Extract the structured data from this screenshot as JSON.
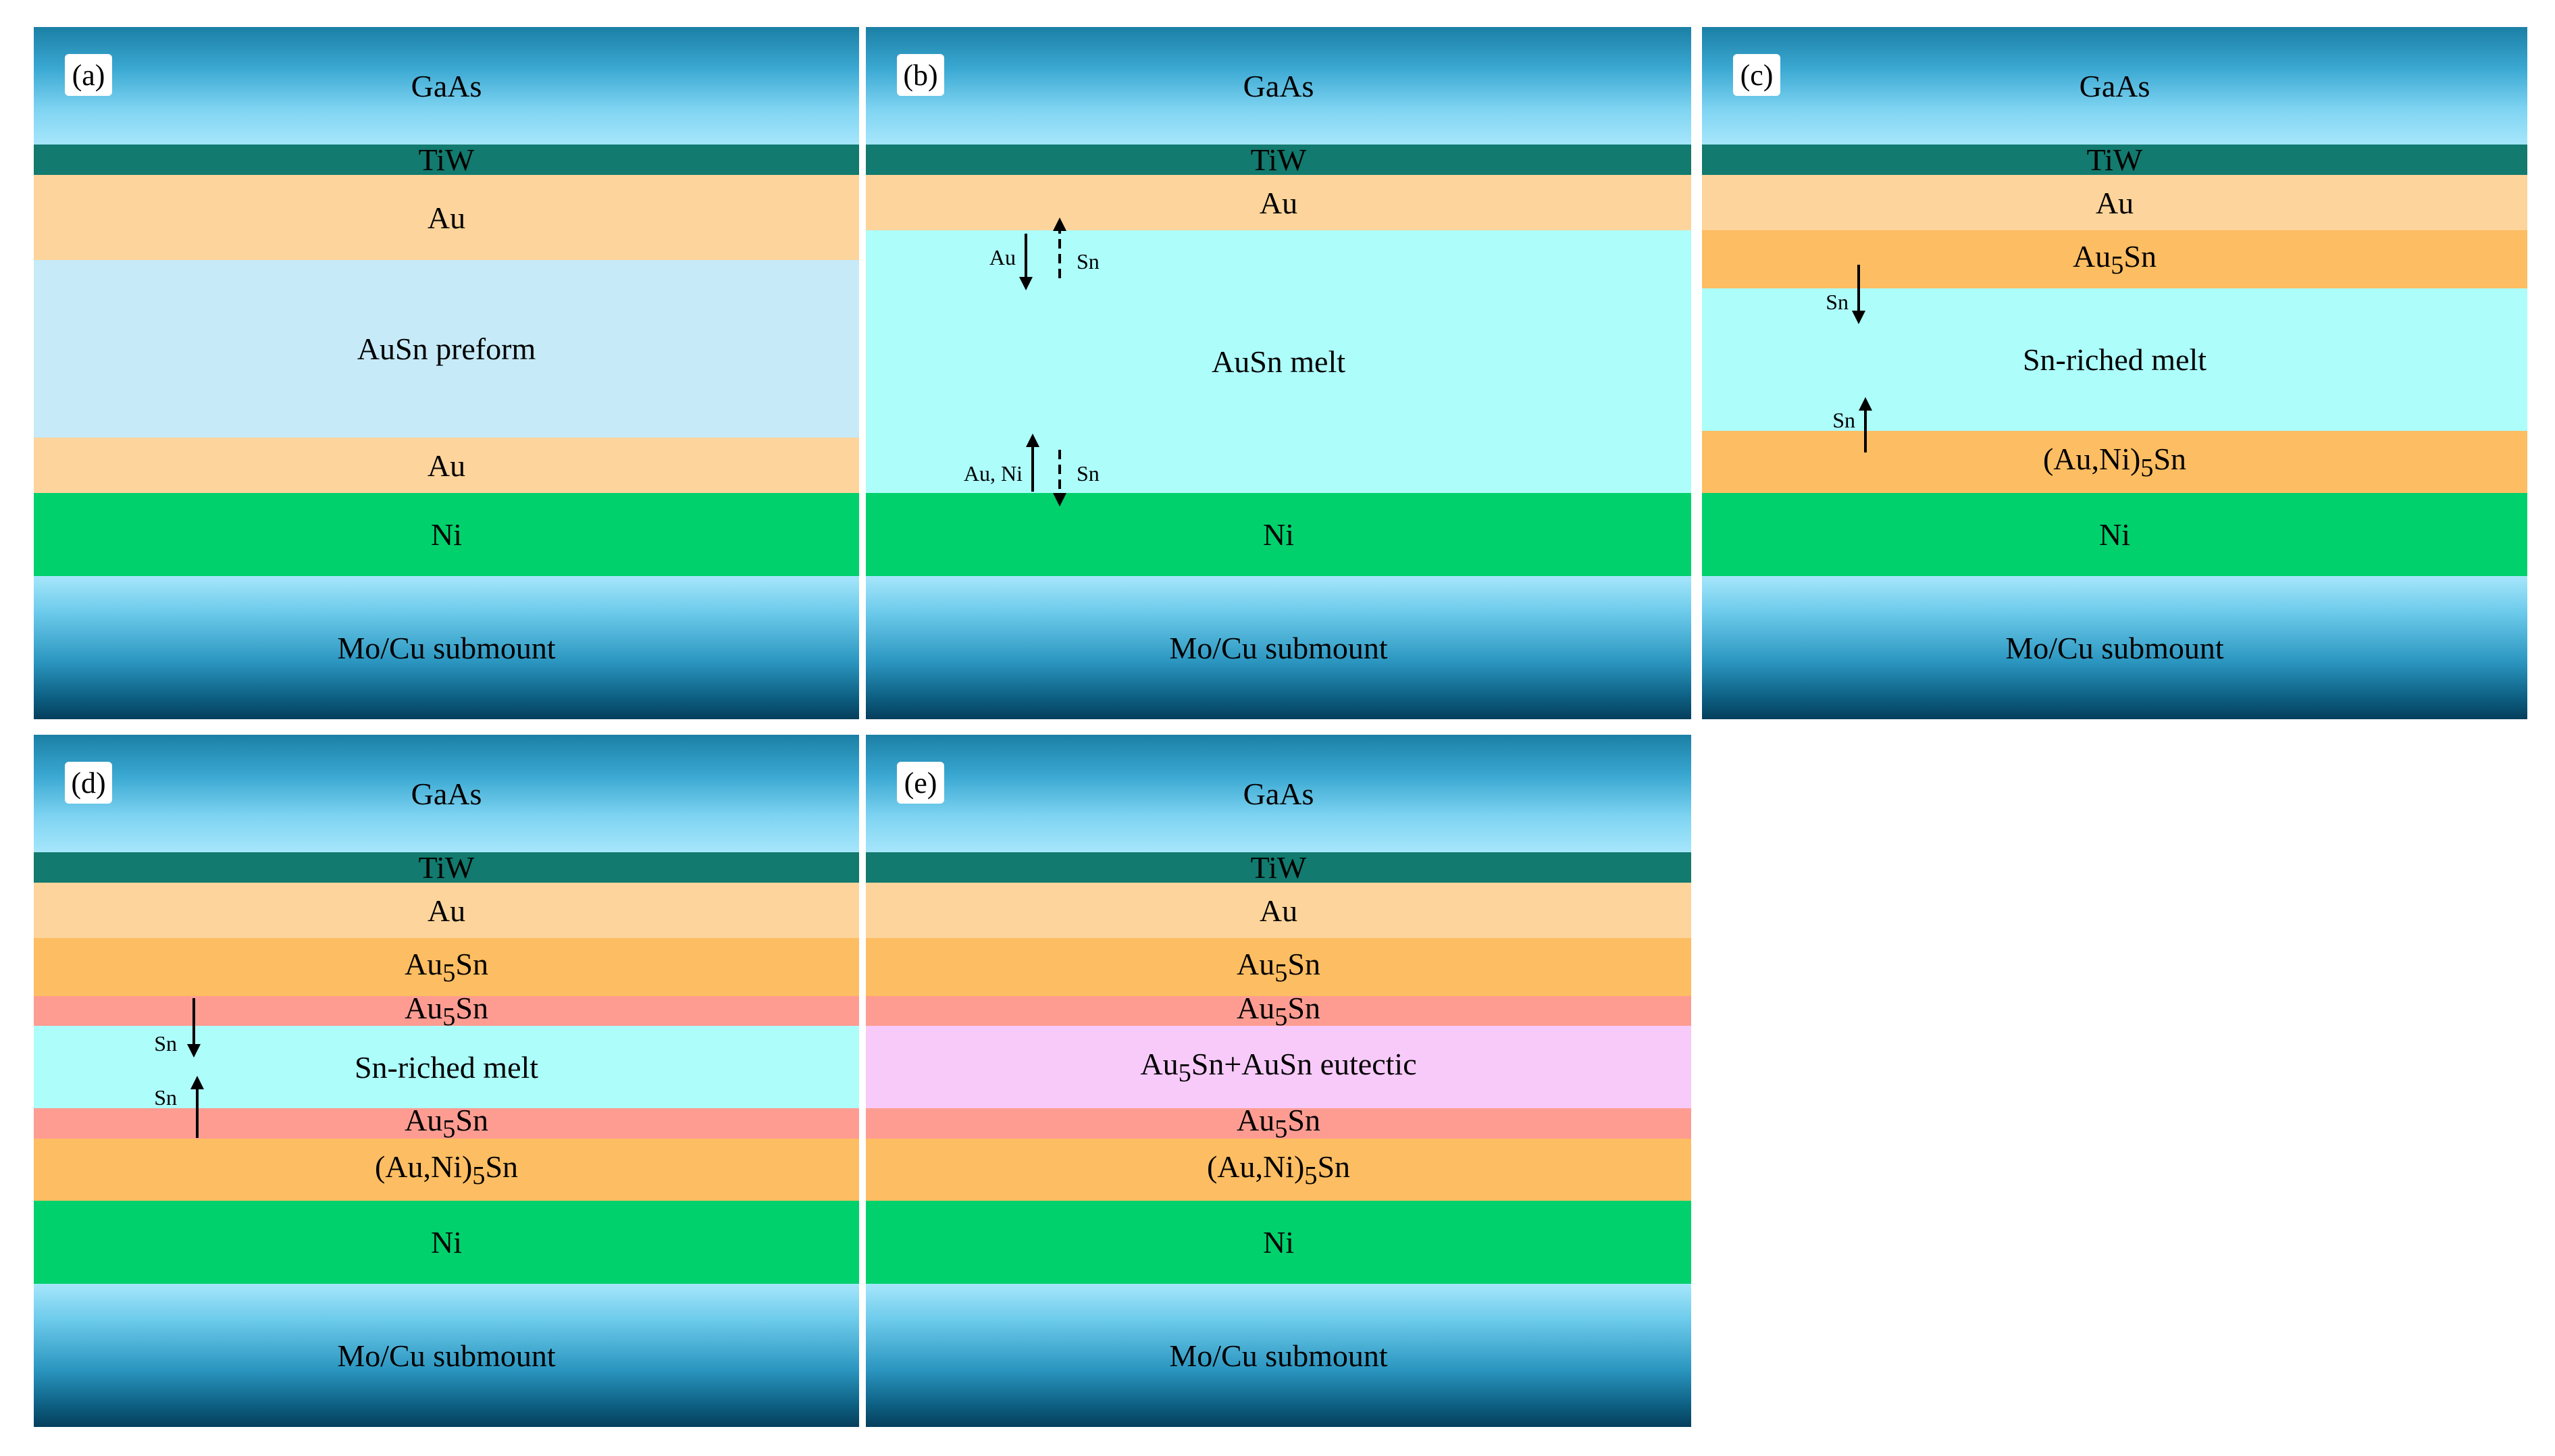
{
  "colors": {
    "gaas_top": "#1b7fa5",
    "submount_bottom": "#063f5c",
    "tiw": "#127a6e",
    "au": "#fdd49b",
    "preform": "#c6eaf7",
    "melt": "#adfdfb",
    "ni": "#00d16c",
    "au5sn_orange": "#fdbd62",
    "au5sn_pink": "#fe9c92",
    "eutectic": "#f7caf9"
  },
  "panels": {
    "a": {
      "tag": "(a)",
      "layers": [
        "GaAs",
        "TiW",
        "Au",
        "AuSn preform",
        "Au",
        "Ni",
        "Mo/Cu submount"
      ]
    },
    "b": {
      "tag": "(b)",
      "layers": [
        "GaAs",
        "TiW",
        "Au",
        "AuSn melt",
        "Ni",
        "Mo/Cu submount"
      ],
      "arrow_labels": {
        "top_down": "Au",
        "top_up": "Sn",
        "bottom_up": "Au, Ni",
        "bottom_down": "Sn"
      }
    },
    "c": {
      "tag": "(c)",
      "layers": [
        "GaAs",
        "TiW",
        "Au",
        "Sn-riched melt",
        "Ni",
        "Mo/Cu submount"
      ],
      "au5sn": {
        "base": "Au",
        "sub": "5",
        "tail": "Sn"
      },
      "auni5sn": {
        "base": "(Au,Ni)",
        "sub": "5",
        "tail": "Sn"
      },
      "arrow_labels": {
        "down": "Sn",
        "up": "Sn"
      }
    },
    "d": {
      "tag": "(d)",
      "layers": [
        "GaAs",
        "TiW",
        "Au",
        "Sn-riched melt",
        "Ni",
        "Mo/Cu submount"
      ],
      "au5sn": {
        "base": "Au",
        "sub": "5",
        "tail": "Sn"
      },
      "auni5sn": {
        "base": "(Au,Ni)",
        "sub": "5",
        "tail": "Sn"
      },
      "arrow_labels": {
        "down": "Sn",
        "up": "Sn"
      }
    },
    "e": {
      "tag": "(e)",
      "layers": [
        "GaAs",
        "TiW",
        "Au",
        "Ni",
        "Mo/Cu submount"
      ],
      "au5sn": {
        "base": "Au",
        "sub": "5",
        "tail": "Sn"
      },
      "auni5sn": {
        "base": "(Au,Ni)",
        "sub": "5",
        "tail": "Sn"
      },
      "eutectic": {
        "base": "Au",
        "sub": "5",
        "tail": "Sn+AuSn eutectic"
      }
    }
  }
}
